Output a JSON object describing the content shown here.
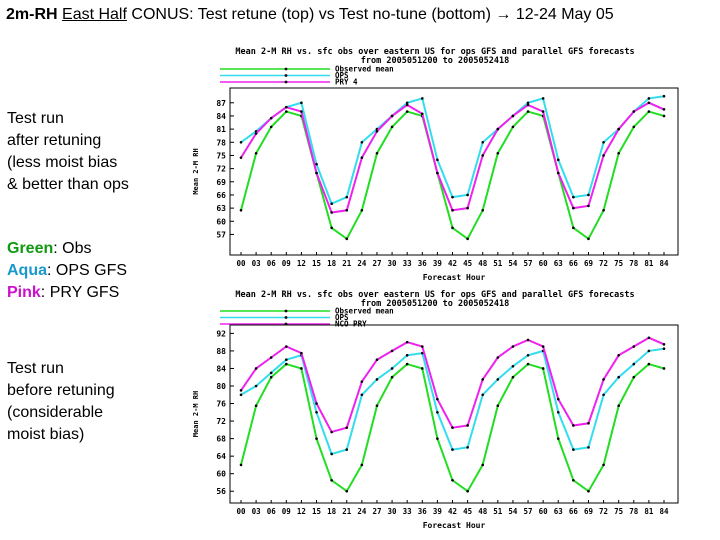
{
  "slide": {
    "title_bold": "2m-RH",
    "title_underlined": "East Half",
    "title_rest": " CONUS: Test retune (top) vs Test no-tune (bottom) → 12-24 May 05"
  },
  "left_panel": {
    "top_block": [
      "Test run",
      "after retuning",
      "(less moist bias",
      "& better than ops"
    ],
    "legend": [
      {
        "label": "Green",
        "text": ": Obs",
        "color": "#119911"
      },
      {
        "label": "Aqua",
        "text": ":  OPS GFS",
        "color": "#1a99cc"
      },
      {
        "label": "Pink",
        "text": ":   PRY GFS",
        "color": "#cc11cc"
      }
    ],
    "bottom_block": [
      "Test run",
      "before retuning",
      "(considerable",
      "moist bias)"
    ]
  },
  "colors": {
    "obs": "#22dd22",
    "ops": "#33ddee",
    "pry": "#ee22ee",
    "frame": "#000000"
  },
  "chart_data": [
    {
      "type": "line",
      "title": "Mean 2-M RH vs. sfc obs over eastern US for ops GFS and parallel GFS forecasts",
      "subtitle": "from 2005051200 to 2005052418",
      "xlabel": "Forecast Hour",
      "ylabel": "Mean 2-M RH",
      "ylim": [
        53,
        89
      ],
      "yticks": [
        57,
        60,
        63,
        66,
        69,
        72,
        75,
        78,
        81,
        84,
        87
      ],
      "x": [
        0,
        3,
        6,
        9,
        12,
        15,
        18,
        21,
        24,
        27,
        30,
        33,
        36,
        39,
        42,
        45,
        48,
        51,
        54,
        57,
        60,
        63,
        66,
        69,
        72,
        75,
        78,
        81,
        84
      ],
      "legend": "top-left",
      "grid": false,
      "series": [
        {
          "name": "Observed mean",
          "key": "obs",
          "marker": "dot",
          "values": [
            62.5,
            75.5,
            81.5,
            85,
            84,
            71,
            58.5,
            56,
            62.5,
            75.5,
            81.5,
            85,
            84,
            71,
            58.5,
            56,
            62.5,
            75.5,
            81.5,
            85,
            84,
            71,
            58.5,
            56,
            62.5,
            75.5,
            81.5,
            85,
            84
          ]
        },
        {
          "name": "OPS",
          "key": "ops",
          "marker": "circle",
          "values": [
            78,
            80.5,
            83.5,
            86,
            87,
            73,
            64,
            65.5,
            78,
            81,
            84,
            87,
            88,
            74,
            65.5,
            66,
            78,
            81,
            84,
            87,
            88,
            74,
            65.5,
            66,
            78,
            81,
            85,
            88,
            88.5
          ]
        },
        {
          "name": "PRY 4",
          "key": "pry",
          "marker": "diamond",
          "values": [
            74.5,
            80,
            83.5,
            86,
            85,
            71,
            62,
            62.5,
            74.5,
            80.5,
            84,
            86.5,
            84.5,
            71,
            62.5,
            63,
            75,
            81,
            84,
            86.5,
            85,
            71,
            63,
            63.5,
            75,
            81,
            85,
            87,
            85.5
          ]
        }
      ]
    },
    {
      "type": "line",
      "title": "Mean 2-M RH vs. sfc obs over eastern US for ops GFS and parallel GFS forecasts",
      "subtitle": "from 2005051200 to 2005052418",
      "xlabel": "Forecast Hour",
      "ylabel": "Mean 2-M RH",
      "ylim": [
        54,
        93
      ],
      "yticks": [
        56,
        60,
        64,
        68,
        72,
        76,
        80,
        84,
        88,
        92
      ],
      "x": [
        0,
        3,
        6,
        9,
        12,
        15,
        18,
        21,
        24,
        27,
        30,
        33,
        36,
        39,
        42,
        45,
        48,
        51,
        54,
        57,
        60,
        63,
        66,
        69,
        72,
        75,
        78,
        81,
        84
      ],
      "legend": "top-left",
      "grid": false,
      "series": [
        {
          "name": "Observed mean",
          "key": "obs",
          "marker": "dot",
          "values": [
            62,
            75.5,
            82,
            85,
            84,
            68,
            58.5,
            56,
            62,
            75.5,
            82,
            85,
            84,
            68,
            58.5,
            56,
            62,
            75.5,
            82,
            85,
            84,
            68,
            58.5,
            56,
            62,
            75.5,
            82,
            85,
            84
          ]
        },
        {
          "name": "OPS",
          "key": "ops",
          "marker": "circle",
          "values": [
            78,
            80,
            83,
            86,
            87,
            74,
            64.5,
            65.5,
            78,
            81.5,
            84,
            87,
            87.5,
            74,
            65.5,
            66,
            78,
            81.5,
            84.5,
            87,
            88,
            74,
            65.5,
            66,
            78,
            82,
            85,
            88,
            88.5
          ]
        },
        {
          "name": "NCO PRY",
          "key": "pry",
          "marker": "diamond",
          "values": [
            79,
            84,
            86.5,
            89,
            87.5,
            76,
            69.5,
            70.5,
            81,
            86,
            88,
            90,
            89,
            77,
            70.5,
            71,
            81.5,
            86.5,
            89,
            90.5,
            89,
            77,
            71,
            71.5,
            81.5,
            87,
            89,
            91,
            89.5
          ]
        }
      ]
    }
  ]
}
